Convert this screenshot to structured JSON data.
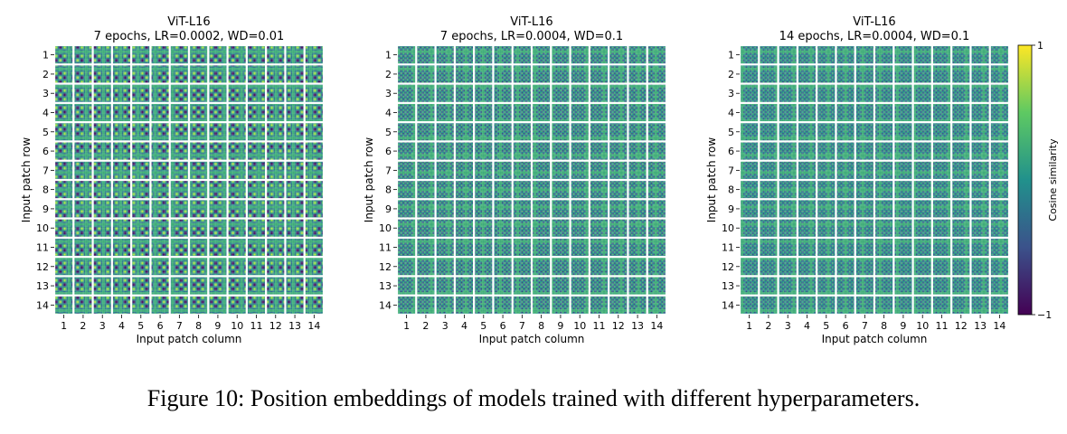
{
  "caption": "Figure 10: Position embeddings of models trained with different hyperparameters.",
  "colormap": [
    "#440154",
    "#3b528b",
    "#21918c",
    "#5ec962",
    "#fde725"
  ],
  "chart_data": [
    {
      "type": "heatmap",
      "title": "ViT-L16",
      "subtitle": "7 epochs, LR=0.0002, WD=0.01",
      "xlabel": "Input patch column",
      "ylabel": "Input patch row",
      "x_ticks": [
        "1",
        "2",
        "3",
        "4",
        "5",
        "6",
        "7",
        "8",
        "9",
        "10",
        "11",
        "12",
        "13",
        "14"
      ],
      "y_ticks": [
        "1",
        "2",
        "3",
        "4",
        "5",
        "6",
        "7",
        "8",
        "9",
        "10",
        "11",
        "12",
        "13",
        "14"
      ],
      "grid_size": [
        14,
        14
      ],
      "cell_resolution": [
        14,
        14
      ],
      "pattern_frequency": 2,
      "pattern_contrast": 0.55
    },
    {
      "type": "heatmap",
      "title": "ViT-L16",
      "subtitle": "7 epochs, LR=0.0004, WD=0.1",
      "xlabel": "Input patch column",
      "ylabel": "Input patch row",
      "x_ticks": [
        "1",
        "2",
        "3",
        "4",
        "5",
        "6",
        "7",
        "8",
        "9",
        "10",
        "11",
        "12",
        "13",
        "14"
      ],
      "y_ticks": [
        "1",
        "2",
        "3",
        "4",
        "5",
        "6",
        "7",
        "8",
        "9",
        "10",
        "11",
        "12",
        "13",
        "14"
      ],
      "grid_size": [
        14,
        14
      ],
      "cell_resolution": [
        14,
        14
      ],
      "pattern_frequency": 4,
      "pattern_contrast": 0.35
    },
    {
      "type": "heatmap",
      "title": "ViT-L16",
      "subtitle": "14 epochs, LR=0.0004, WD=0.1",
      "xlabel": "Input patch column",
      "ylabel": "Input patch row",
      "x_ticks": [
        "1",
        "2",
        "3",
        "4",
        "5",
        "6",
        "7",
        "8",
        "9",
        "10",
        "11",
        "12",
        "13",
        "14"
      ],
      "y_ticks": [
        "1",
        "2",
        "3",
        "4",
        "5",
        "6",
        "7",
        "8",
        "9",
        "10",
        "11",
        "12",
        "13",
        "14"
      ],
      "grid_size": [
        14,
        14
      ],
      "cell_resolution": [
        14,
        14
      ],
      "pattern_frequency": 4,
      "pattern_contrast": 0.3
    }
  ],
  "colorbar": {
    "label": "Cosine similarity",
    "max_label": "1",
    "min_label": "−1",
    "range": [
      -1,
      1
    ]
  }
}
